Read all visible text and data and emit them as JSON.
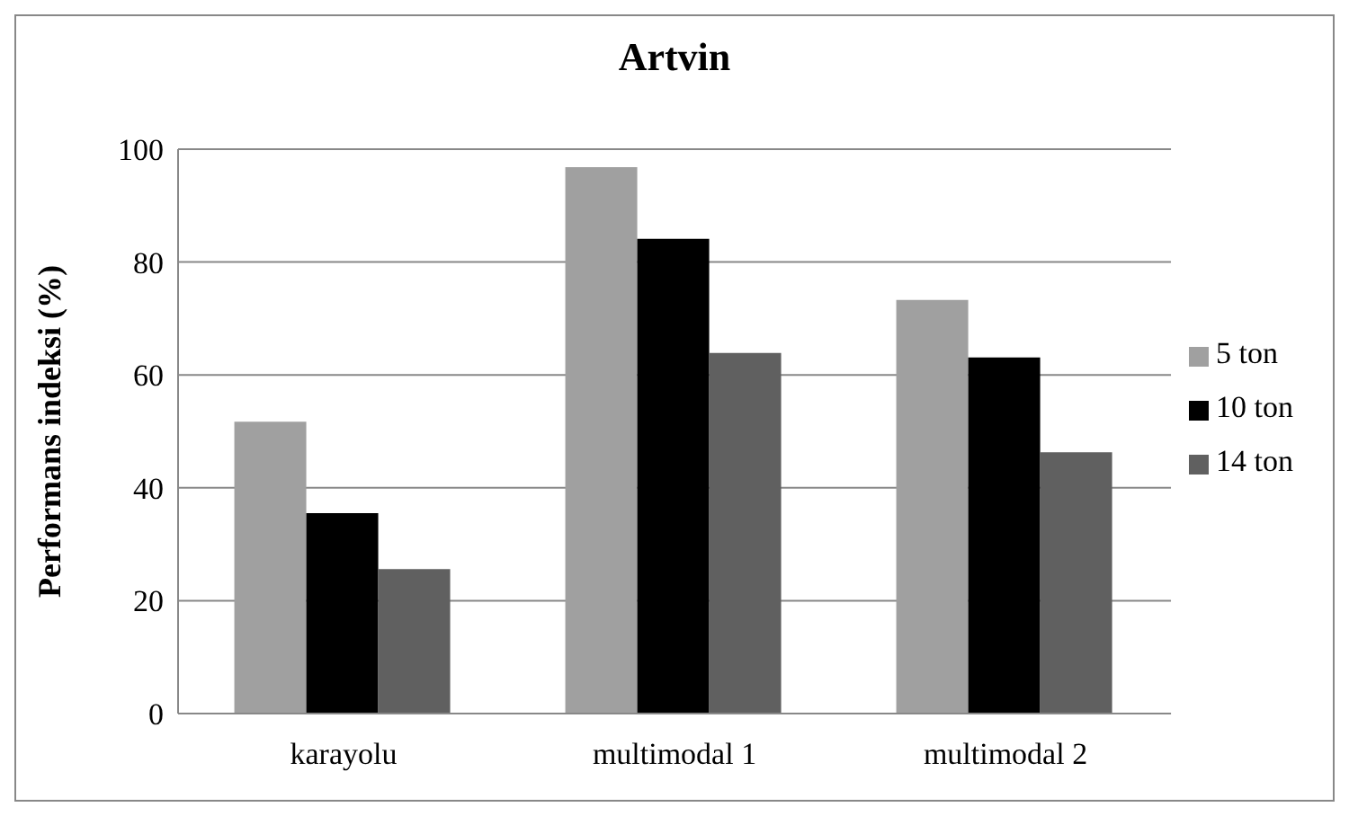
{
  "chart_data": {
    "type": "bar",
    "title": "Artvin",
    "ylabel": "Performans indeksi  (%)",
    "categories": [
      "karayolu",
      "multimodal 1",
      "multimodal 2"
    ],
    "series": [
      {
        "name": "5 ton",
        "color": "#a0a0a0",
        "values": [
          51.7,
          96.8,
          73.3
        ]
      },
      {
        "name": "10 ton",
        "color": "#000000",
        "values": [
          35.5,
          84.1,
          63.1
        ]
      },
      {
        "name": "14 ton",
        "color": "#606060",
        "values": [
          25.6,
          63.9,
          46.3
        ]
      }
    ],
    "ylim": [
      0,
      100
    ],
    "yticks": [
      0,
      20,
      40,
      60,
      80,
      100
    ],
    "grid": "y",
    "legend": "right"
  }
}
